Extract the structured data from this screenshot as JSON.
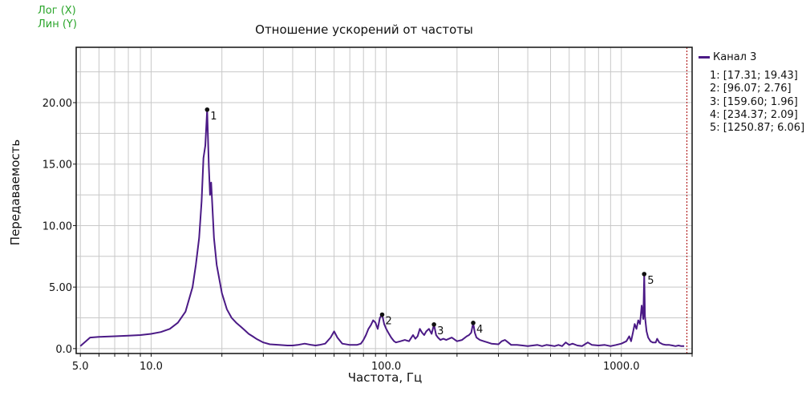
{
  "scale_modes": {
    "x": "Лог (X)",
    "y": "Лин (Y)"
  },
  "colors": {
    "series": "#4b1a86",
    "grid": "#c8c8c8",
    "marker_line": "#b22222",
    "scale_mode": "#2aa52a"
  },
  "chart_data": {
    "type": "line",
    "title": "Отношение ускорений от частоты",
    "xlabel": "Частота, Гц",
    "ylabel": "Передаваемость",
    "x_scale": "log",
    "xlim": [
      4.8,
      2000
    ],
    "ylim": [
      -0.4,
      24.5
    ],
    "x_ticks": [
      {
        "value": 5,
        "label": "5.0"
      },
      {
        "value": 10,
        "label": "10.0"
      },
      {
        "value": 100,
        "label": "100.0"
      },
      {
        "value": 1000,
        "label": "1000.0"
      }
    ],
    "y_ticks": [
      {
        "value": 0,
        "label": "0.0"
      },
      {
        "value": 5,
        "label": "5.00"
      },
      {
        "value": 10,
        "label": "10.00"
      },
      {
        "value": 15,
        "label": "15.00"
      },
      {
        "value": 20,
        "label": "20.00"
      }
    ],
    "grid": true,
    "legend_position": "right",
    "cursor_x": 1900,
    "series": [
      {
        "name": "Канал 3",
        "x": [
          5.0,
          5.5,
          6,
          7,
          8,
          9,
          10,
          11,
          12,
          13,
          14,
          15,
          15.5,
          16,
          16.4,
          16.7,
          17.0,
          17.31,
          17.6,
          17.8,
          18.0,
          18.5,
          19,
          20,
          21,
          22,
          23,
          24,
          25,
          26,
          27,
          28,
          30,
          32,
          35,
          38,
          40,
          42,
          45,
          48,
          50,
          52,
          55,
          58,
          60,
          62,
          65,
          70,
          75,
          78,
          80,
          82,
          84,
          86,
          88,
          90,
          92,
          94,
          96.07,
          98,
          100,
          102,
          105,
          108,
          110,
          115,
          120,
          125,
          128,
          130,
          133,
          136,
          139,
          142,
          145,
          148,
          152,
          156,
          159.6,
          163,
          166,
          170,
          175,
          180,
          190,
          200,
          210,
          220,
          225,
          230,
          234.37,
          238,
          242,
          250,
          260,
          270,
          280,
          300,
          310,
          320,
          330,
          340,
          360,
          380,
          400,
          420,
          440,
          460,
          480,
          500,
          520,
          540,
          560,
          580,
          600,
          620,
          650,
          680,
          700,
          720,
          750,
          800,
          850,
          900,
          950,
          1000,
          1050,
          1080,
          1100,
          1120,
          1140,
          1160,
          1180,
          1200,
          1220,
          1240,
          1250.87,
          1260,
          1280,
          1300,
          1330,
          1360,
          1400,
          1420,
          1450,
          1500,
          1550,
          1600,
          1650,
          1700,
          1750,
          1800,
          1850
        ],
        "y": [
          0.2,
          0.9,
          0.95,
          1.0,
          1.05,
          1.1,
          1.2,
          1.35,
          1.6,
          2.1,
          3.0,
          5.0,
          6.8,
          9.0,
          12.0,
          15.5,
          16.5,
          19.43,
          14.8,
          12.5,
          13.5,
          9.0,
          6.8,
          4.5,
          3.2,
          2.5,
          2.1,
          1.8,
          1.5,
          1.2,
          1.0,
          0.8,
          0.5,
          0.35,
          0.3,
          0.25,
          0.25,
          0.3,
          0.4,
          0.3,
          0.25,
          0.3,
          0.4,
          0.9,
          1.4,
          0.9,
          0.4,
          0.3,
          0.3,
          0.4,
          0.7,
          1.1,
          1.6,
          1.9,
          2.3,
          2.1,
          1.6,
          2.5,
          2.76,
          2.0,
          1.6,
          1.3,
          0.9,
          0.6,
          0.5,
          0.6,
          0.7,
          0.6,
          0.9,
          1.1,
          0.8,
          1.0,
          1.6,
          1.3,
          1.1,
          1.4,
          1.6,
          1.2,
          1.96,
          1.1,
          0.9,
          0.7,
          0.8,
          0.7,
          0.9,
          0.6,
          0.7,
          1.0,
          1.1,
          1.3,
          2.09,
          1.3,
          0.9,
          0.7,
          0.6,
          0.5,
          0.4,
          0.35,
          0.6,
          0.7,
          0.5,
          0.3,
          0.3,
          0.25,
          0.2,
          0.25,
          0.3,
          0.2,
          0.3,
          0.25,
          0.2,
          0.3,
          0.2,
          0.5,
          0.3,
          0.4,
          0.25,
          0.2,
          0.35,
          0.5,
          0.3,
          0.25,
          0.3,
          0.2,
          0.3,
          0.4,
          0.6,
          1.0,
          0.6,
          1.3,
          2.0,
          1.6,
          2.3,
          2.0,
          3.5,
          2.4,
          6.06,
          2.6,
          1.4,
          0.9,
          0.6,
          0.5,
          0.5,
          0.8,
          0.5,
          0.35,
          0.3,
          0.3,
          0.25,
          0.2,
          0.25,
          0.2,
          0.2
        ]
      }
    ],
    "peaks": [
      {
        "label": "1",
        "x": 17.31,
        "y": 19.43,
        "text": "1: [17.31; 19.43]"
      },
      {
        "label": "2",
        "x": 96.07,
        "y": 2.76,
        "text": "2: [96.07; 2.76]"
      },
      {
        "label": "3",
        "x": 159.6,
        "y": 1.96,
        "text": "3: [159.60; 1.96]"
      },
      {
        "label": "4",
        "x": 234.37,
        "y": 2.09,
        "text": "4: [234.37; 2.09]"
      },
      {
        "label": "5",
        "x": 1250.87,
        "y": 6.06,
        "text": "5: [1250.87; 6.06]"
      }
    ]
  }
}
